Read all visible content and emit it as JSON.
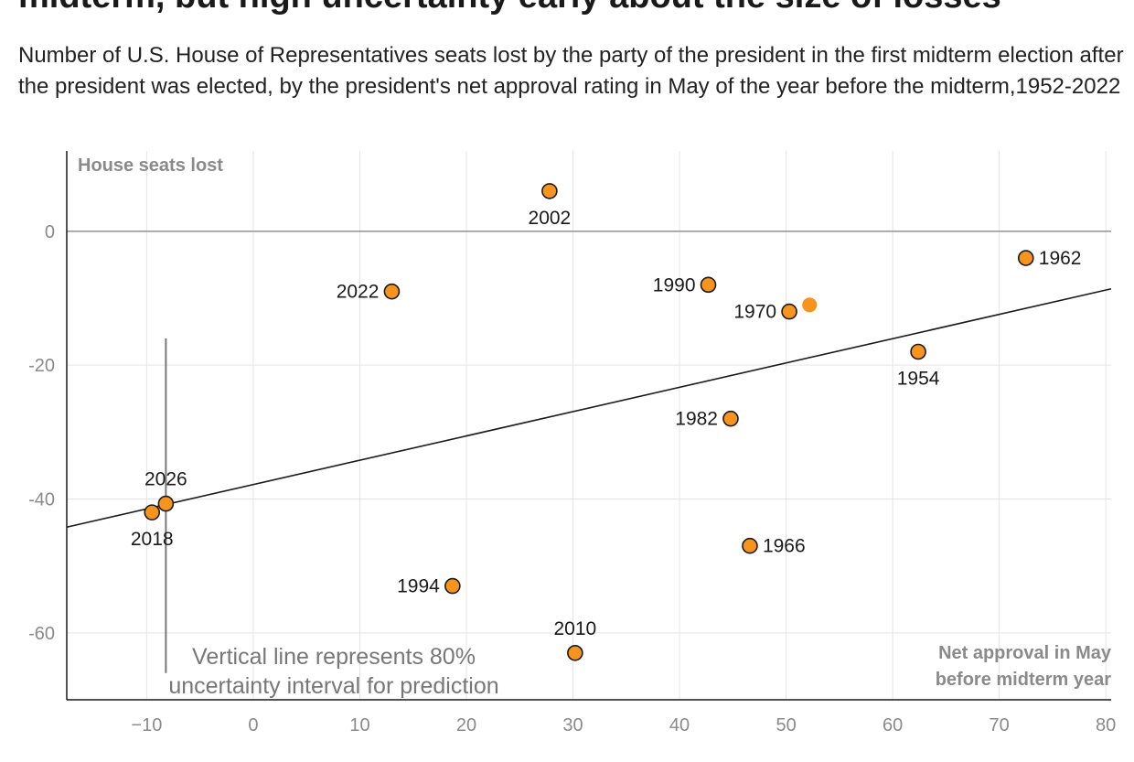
{
  "title": "midterm, but high uncertainty early about the size of losses",
  "subtitle": "Number of U.S. House of Representatives seats lost by the party of the president in the first midterm election after the president was elected, by the president's net approval rating in May of the year before the midterm,1952-2022",
  "chart_data": {
    "type": "scatter",
    "title": "midterm, but high uncertainty early about the size of losses",
    "subtitle": "Number of U.S. House of Representatives seats lost by the party of the president in the first midterm election after the president was elected, by the president's net approval rating in May of the year before the midterm,1952-2022",
    "xlabel": "Net approval in May before midterm year",
    "xlabel_lines": [
      "Net approval in May",
      "before midterm year"
    ],
    "ylabel": "House seats lost",
    "xlim": [
      -17.5,
      80.5
    ],
    "ylim": [
      -70,
      12
    ],
    "x_ticks": [
      -10,
      0,
      10,
      20,
      30,
      40,
      50,
      60,
      70,
      80
    ],
    "x_tick_labels": [
      "−10",
      "0",
      "10",
      "20",
      "30",
      "40",
      "50",
      "60",
      "70",
      "80"
    ],
    "y_ticks": [
      0,
      -20,
      -40,
      -60
    ],
    "y_tick_labels": [
      "0",
      "-20",
      "-40",
      "-60"
    ],
    "grid": true,
    "colors": {
      "point": "#f7941d",
      "outline": "#1a1a1a",
      "grid": "#e5e5e5",
      "zero": "#999999",
      "trend": "#1a1a1a"
    },
    "points": [
      {
        "label": "2002",
        "x": 27.8,
        "y": 6,
        "label_pos": "below"
      },
      {
        "label": "1962",
        "x": 72.5,
        "y": -4,
        "label_pos": "right"
      },
      {
        "label": "1990",
        "x": 42.7,
        "y": -8,
        "label_pos": "left"
      },
      {
        "label": "2022",
        "x": 13.0,
        "y": -9,
        "label_pos": "left"
      },
      {
        "label": "1970",
        "x": 50.3,
        "y": -12,
        "label_pos": "left"
      },
      {
        "label": "1954",
        "x": 62.4,
        "y": -18,
        "label_pos": "below"
      },
      {
        "label": "1982",
        "x": 44.8,
        "y": -28,
        "label_pos": "left"
      },
      {
        "label": "2018",
        "x": -9.5,
        "y": -42,
        "label_pos": "below"
      },
      {
        "label": "1966",
        "x": 46.6,
        "y": -47,
        "label_pos": "right"
      },
      {
        "label": "1994",
        "x": 18.7,
        "y": -53,
        "label_pos": "left"
      },
      {
        "label": "2010",
        "x": 30.2,
        "y": -63,
        "label_pos": "above"
      }
    ],
    "extra_point": {
      "x": 52.2,
      "y": -11
    },
    "prediction": {
      "label": "2026",
      "x": -8.2,
      "y": -40.7,
      "interval": [
        -16,
        -66
      ],
      "label_pos": "above"
    },
    "trend_line": {
      "x": [
        -17.5,
        80.5
      ],
      "y": [
        -44.2,
        -8.6
      ]
    },
    "annotation_lines": [
      "Vertical line represents 80%",
      "uncertainty interval for prediction"
    ]
  }
}
